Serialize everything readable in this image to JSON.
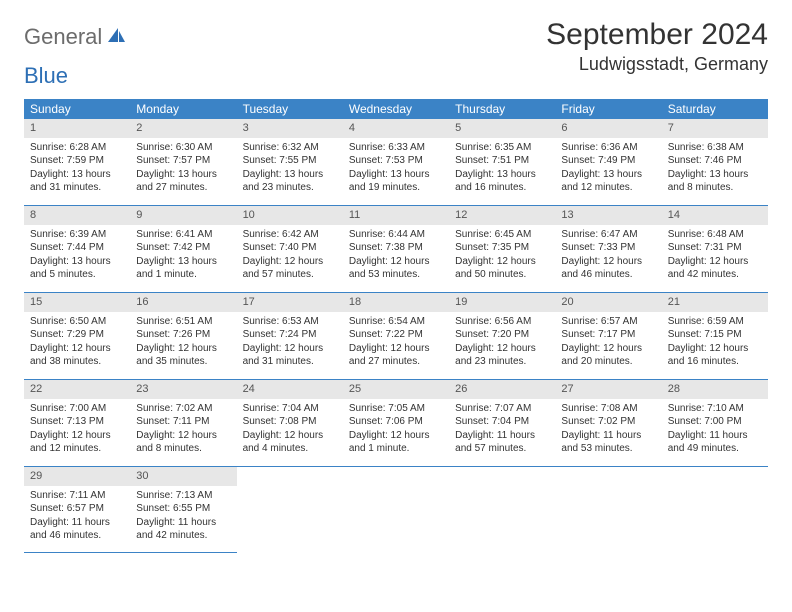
{
  "logo": {
    "general": "General",
    "blue": "Blue"
  },
  "title": "September 2024",
  "location": "Ludwigsstadt, Germany",
  "colors": {
    "header_bg": "#3b83c6",
    "header_text": "#ffffff",
    "daynum_bg": "#e7e7e7",
    "week_border": "#3b83c6",
    "logo_gray": "#6c6c6c",
    "logo_blue": "#2d6fb5"
  },
  "weekdays": [
    "Sunday",
    "Monday",
    "Tuesday",
    "Wednesday",
    "Thursday",
    "Friday",
    "Saturday"
  ],
  "weeks": [
    [
      {
        "n": "1",
        "sunrise": "Sunrise: 6:28 AM",
        "sunset": "Sunset: 7:59 PM",
        "daylight": "Daylight: 13 hours and 31 minutes."
      },
      {
        "n": "2",
        "sunrise": "Sunrise: 6:30 AM",
        "sunset": "Sunset: 7:57 PM",
        "daylight": "Daylight: 13 hours and 27 minutes."
      },
      {
        "n": "3",
        "sunrise": "Sunrise: 6:32 AM",
        "sunset": "Sunset: 7:55 PM",
        "daylight": "Daylight: 13 hours and 23 minutes."
      },
      {
        "n": "4",
        "sunrise": "Sunrise: 6:33 AM",
        "sunset": "Sunset: 7:53 PM",
        "daylight": "Daylight: 13 hours and 19 minutes."
      },
      {
        "n": "5",
        "sunrise": "Sunrise: 6:35 AM",
        "sunset": "Sunset: 7:51 PM",
        "daylight": "Daylight: 13 hours and 16 minutes."
      },
      {
        "n": "6",
        "sunrise": "Sunrise: 6:36 AM",
        "sunset": "Sunset: 7:49 PM",
        "daylight": "Daylight: 13 hours and 12 minutes."
      },
      {
        "n": "7",
        "sunrise": "Sunrise: 6:38 AM",
        "sunset": "Sunset: 7:46 PM",
        "daylight": "Daylight: 13 hours and 8 minutes."
      }
    ],
    [
      {
        "n": "8",
        "sunrise": "Sunrise: 6:39 AM",
        "sunset": "Sunset: 7:44 PM",
        "daylight": "Daylight: 13 hours and 5 minutes."
      },
      {
        "n": "9",
        "sunrise": "Sunrise: 6:41 AM",
        "sunset": "Sunset: 7:42 PM",
        "daylight": "Daylight: 13 hours and 1 minute."
      },
      {
        "n": "10",
        "sunrise": "Sunrise: 6:42 AM",
        "sunset": "Sunset: 7:40 PM",
        "daylight": "Daylight: 12 hours and 57 minutes."
      },
      {
        "n": "11",
        "sunrise": "Sunrise: 6:44 AM",
        "sunset": "Sunset: 7:38 PM",
        "daylight": "Daylight: 12 hours and 53 minutes."
      },
      {
        "n": "12",
        "sunrise": "Sunrise: 6:45 AM",
        "sunset": "Sunset: 7:35 PM",
        "daylight": "Daylight: 12 hours and 50 minutes."
      },
      {
        "n": "13",
        "sunrise": "Sunrise: 6:47 AM",
        "sunset": "Sunset: 7:33 PM",
        "daylight": "Daylight: 12 hours and 46 minutes."
      },
      {
        "n": "14",
        "sunrise": "Sunrise: 6:48 AM",
        "sunset": "Sunset: 7:31 PM",
        "daylight": "Daylight: 12 hours and 42 minutes."
      }
    ],
    [
      {
        "n": "15",
        "sunrise": "Sunrise: 6:50 AM",
        "sunset": "Sunset: 7:29 PM",
        "daylight": "Daylight: 12 hours and 38 minutes."
      },
      {
        "n": "16",
        "sunrise": "Sunrise: 6:51 AM",
        "sunset": "Sunset: 7:26 PM",
        "daylight": "Daylight: 12 hours and 35 minutes."
      },
      {
        "n": "17",
        "sunrise": "Sunrise: 6:53 AM",
        "sunset": "Sunset: 7:24 PM",
        "daylight": "Daylight: 12 hours and 31 minutes."
      },
      {
        "n": "18",
        "sunrise": "Sunrise: 6:54 AM",
        "sunset": "Sunset: 7:22 PM",
        "daylight": "Daylight: 12 hours and 27 minutes."
      },
      {
        "n": "19",
        "sunrise": "Sunrise: 6:56 AM",
        "sunset": "Sunset: 7:20 PM",
        "daylight": "Daylight: 12 hours and 23 minutes."
      },
      {
        "n": "20",
        "sunrise": "Sunrise: 6:57 AM",
        "sunset": "Sunset: 7:17 PM",
        "daylight": "Daylight: 12 hours and 20 minutes."
      },
      {
        "n": "21",
        "sunrise": "Sunrise: 6:59 AM",
        "sunset": "Sunset: 7:15 PM",
        "daylight": "Daylight: 12 hours and 16 minutes."
      }
    ],
    [
      {
        "n": "22",
        "sunrise": "Sunrise: 7:00 AM",
        "sunset": "Sunset: 7:13 PM",
        "daylight": "Daylight: 12 hours and 12 minutes."
      },
      {
        "n": "23",
        "sunrise": "Sunrise: 7:02 AM",
        "sunset": "Sunset: 7:11 PM",
        "daylight": "Daylight: 12 hours and 8 minutes."
      },
      {
        "n": "24",
        "sunrise": "Sunrise: 7:04 AM",
        "sunset": "Sunset: 7:08 PM",
        "daylight": "Daylight: 12 hours and 4 minutes."
      },
      {
        "n": "25",
        "sunrise": "Sunrise: 7:05 AM",
        "sunset": "Sunset: 7:06 PM",
        "daylight": "Daylight: 12 hours and 1 minute."
      },
      {
        "n": "26",
        "sunrise": "Sunrise: 7:07 AM",
        "sunset": "Sunset: 7:04 PM",
        "daylight": "Daylight: 11 hours and 57 minutes."
      },
      {
        "n": "27",
        "sunrise": "Sunrise: 7:08 AM",
        "sunset": "Sunset: 7:02 PM",
        "daylight": "Daylight: 11 hours and 53 minutes."
      },
      {
        "n": "28",
        "sunrise": "Sunrise: 7:10 AM",
        "sunset": "Sunset: 7:00 PM",
        "daylight": "Daylight: 11 hours and 49 minutes."
      }
    ],
    [
      {
        "n": "29",
        "sunrise": "Sunrise: 7:11 AM",
        "sunset": "Sunset: 6:57 PM",
        "daylight": "Daylight: 11 hours and 46 minutes."
      },
      {
        "n": "30",
        "sunrise": "Sunrise: 7:13 AM",
        "sunset": "Sunset: 6:55 PM",
        "daylight": "Daylight: 11 hours and 42 minutes."
      },
      null,
      null,
      null,
      null,
      null
    ]
  ]
}
